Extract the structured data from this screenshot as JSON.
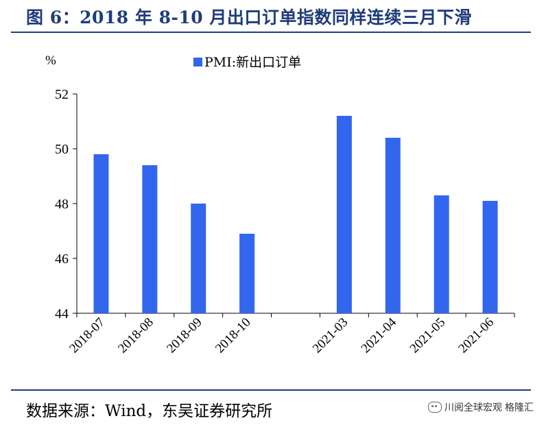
{
  "header": {
    "title": "图 6：2018 年 8-10 月出口订单指数同样连续三月下滑"
  },
  "footer": {
    "source": "数据来源：Wind，东吴证券研究所",
    "watermark": "川阅全球宏观",
    "watermark2": "格隆汇"
  },
  "chart_data": {
    "type": "bar",
    "unit_label": "%",
    "categories": [
      "2018-07",
      "2018-08",
      "2018-09",
      "2018-10",
      "",
      "2021-03",
      "2021-04",
      "2021-05",
      "2021-06"
    ],
    "series": [
      {
        "name": "PMI:新出口订单",
        "values": [
          49.8,
          49.4,
          48.0,
          46.9,
          null,
          51.2,
          50.4,
          48.3,
          48.1
        ]
      }
    ],
    "ylim": [
      44,
      52
    ],
    "yticks": [
      44,
      46,
      48,
      50,
      52
    ],
    "grid": false,
    "legend": "top-center",
    "colors": {
      "bar": "#3366ee",
      "axis": "#000000"
    }
  }
}
